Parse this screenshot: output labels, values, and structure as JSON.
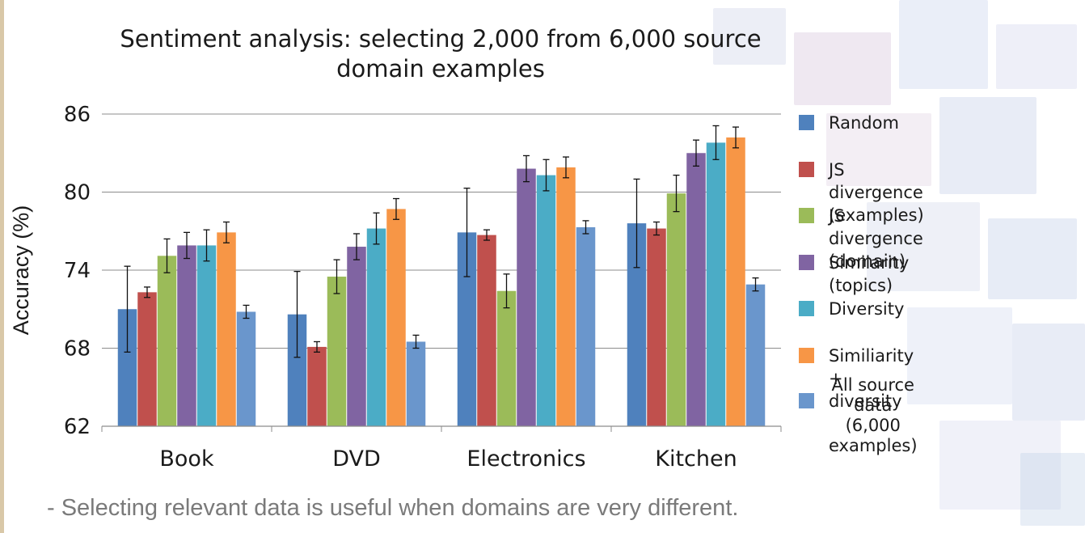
{
  "note": "-  Selecting relevant data is useful when domains are very different.",
  "chart_data": {
    "type": "bar",
    "title": "Sentiment analysis: selecting 2,000 from 6,000 source\ndomain examples",
    "xlabel": "",
    "ylabel": "Accuracy (%)",
    "ylim": [
      62,
      86
    ],
    "yticks": [
      62,
      68,
      74,
      80,
      86
    ],
    "grid": true,
    "legend_position": "right",
    "categories": [
      "Book",
      "DVD",
      "Electronics",
      "Kitchen"
    ],
    "series": [
      {
        "name": "Random",
        "color": "#4f81bd",
        "values": [
          71.0,
          70.6,
          76.9,
          77.6
        ],
        "error": [
          3.3,
          3.3,
          3.4,
          3.4
        ]
      },
      {
        "name": "JS divergence (examples)",
        "color": "#c0504d",
        "values": [
          72.3,
          68.1,
          76.7,
          77.2
        ],
        "error": [
          0.4,
          0.4,
          0.4,
          0.5
        ]
      },
      {
        "name": "JS divergence (domain)",
        "color": "#9bbb59",
        "values": [
          75.1,
          73.5,
          72.4,
          79.9
        ],
        "error": [
          1.3,
          1.3,
          1.3,
          1.4
        ]
      },
      {
        "name": "Similarity (topics)",
        "color": "#8064a2",
        "values": [
          75.9,
          75.8,
          81.8,
          83.0
        ],
        "error": [
          1.0,
          1.0,
          1.0,
          1.0
        ]
      },
      {
        "name": "Diversity",
        "color": "#4bacc6",
        "values": [
          75.9,
          77.2,
          81.3,
          83.8
        ],
        "error": [
          1.2,
          1.2,
          1.2,
          1.3
        ]
      },
      {
        "name": "Similiarity + diversity",
        "color": "#f79646",
        "values": [
          76.9,
          78.7,
          81.9,
          84.2
        ],
        "error": [
          0.8,
          0.8,
          0.8,
          0.8
        ]
      },
      {
        "name": "All source data\n(6,000 examples)",
        "color": "#6a96cc",
        "values": [
          70.8,
          68.5,
          77.3,
          72.9
        ],
        "error": [
          0.5,
          0.5,
          0.5,
          0.5
        ]
      }
    ]
  }
}
